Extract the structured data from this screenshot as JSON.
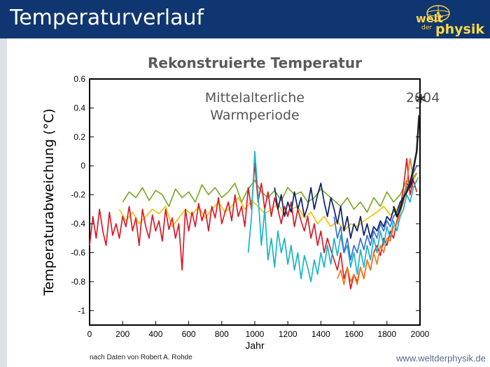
{
  "header": {
    "title": "Temperaturverlauf",
    "logo_top": "welt",
    "logo_mid": "der",
    "logo_bottom": "physik",
    "colors": {
      "bar": "#0f3670",
      "logo_text": "#ffd84a"
    }
  },
  "footer": {
    "source": "nach Daten von Robert A. Rohde",
    "url": "www.weltderphysik.de"
  },
  "chart_data": {
    "type": "line",
    "title": "Rekonstruierte Temperatur",
    "xlabel": "Jahr",
    "ylabel": "Temperaturabweichung (°C)",
    "xlim": [
      0,
      2000
    ],
    "ylim": [
      -1.1,
      0.6
    ],
    "xticks": [
      0,
      200,
      400,
      600,
      800,
      1000,
      1200,
      1400,
      1600,
      1800,
      2000
    ],
    "yticks": [
      0.6,
      0.4,
      0.2,
      0,
      -0.2,
      -0.4,
      -0.6,
      -0.8,
      -1
    ],
    "ytick_labels": [
      "0.6",
      "0.4",
      "0.2",
      "0",
      "-0.2",
      "-0.4",
      "-0.6",
      "-0.8",
      "-1"
    ],
    "annotations": [
      {
        "text": "Mittelalterliche",
        "x": 1000,
        "y": 0.44
      },
      {
        "text": "Warmperiode",
        "x": 1000,
        "y": 0.32
      },
      {
        "text": "2004",
        "x": 1915,
        "y": 0.44
      }
    ],
    "marker": {
      "symbol": "*",
      "x": 2004,
      "y": 0.44
    },
    "series": [
      {
        "color": "#7cab2c",
        "x": [
          200,
          240,
          280,
          320,
          360,
          400,
          440,
          480,
          520,
          560,
          600,
          640,
          680,
          720,
          760,
          800,
          840,
          880,
          920,
          960,
          1000,
          1040,
          1080,
          1120,
          1160,
          1200,
          1240,
          1280,
          1320,
          1360,
          1400,
          1440,
          1480,
          1520,
          1560,
          1600,
          1640,
          1680,
          1720,
          1760,
          1800,
          1840,
          1880,
          1920,
          1960,
          1990
        ],
        "y": [
          -0.25,
          -0.18,
          -0.22,
          -0.15,
          -0.24,
          -0.17,
          -0.2,
          -0.28,
          -0.16,
          -0.22,
          -0.18,
          -0.25,
          -0.13,
          -0.2,
          -0.15,
          -0.22,
          -0.18,
          -0.12,
          -0.25,
          -0.16,
          -0.1,
          -0.18,
          -0.22,
          -0.17,
          -0.24,
          -0.15,
          -0.2,
          -0.18,
          -0.25,
          -0.22,
          -0.16,
          -0.2,
          -0.24,
          -0.28,
          -0.22,
          -0.3,
          -0.25,
          -0.32,
          -0.22,
          -0.28,
          -0.18,
          -0.25,
          -0.2,
          -0.1,
          -0.15,
          -0.08
        ]
      },
      {
        "color": "#f2c200",
        "x": [
          180,
          220,
          260,
          300,
          340,
          380,
          420,
          460,
          500,
          540,
          580,
          620,
          660,
          700,
          740,
          780,
          820,
          860,
          900,
          940,
          980,
          1020,
          1060,
          1100,
          1140,
          1180,
          1220,
          1260,
          1300,
          1340,
          1380,
          1420,
          1460,
          1500,
          1540,
          1580,
          1620,
          1660,
          1700,
          1740,
          1780,
          1820,
          1860,
          1900,
          1940,
          1980
        ],
        "y": [
          -0.3,
          -0.38,
          -0.32,
          -0.4,
          -0.35,
          -0.3,
          -0.33,
          -0.28,
          -0.42,
          -0.36,
          -0.3,
          -0.34,
          -0.28,
          -0.36,
          -0.3,
          -0.25,
          -0.32,
          -0.28,
          -0.22,
          -0.3,
          -0.24,
          -0.28,
          -0.33,
          -0.3,
          -0.26,
          -0.34,
          -0.3,
          -0.28,
          -0.36,
          -0.32,
          -0.4,
          -0.35,
          -0.42,
          -0.38,
          -0.45,
          -0.4,
          -0.42,
          -0.38,
          -0.35,
          -0.32,
          -0.28,
          -0.34,
          -0.3,
          -0.22,
          -0.15,
          -0.05
        ]
      },
      {
        "color": "#d81b2b",
        "x": [
          0,
          20,
          40,
          60,
          80,
          100,
          120,
          140,
          160,
          180,
          200,
          220,
          240,
          260,
          280,
          300,
          320,
          340,
          360,
          380,
          400,
          420,
          440,
          460,
          480,
          500,
          520,
          540,
          560,
          580,
          600,
          620,
          640,
          660,
          680,
          700,
          720,
          740,
          760,
          780,
          800,
          820,
          840,
          860,
          880,
          900,
          920,
          940,
          960,
          980,
          1000,
          1020,
          1040,
          1060,
          1080,
          1100,
          1120,
          1140,
          1160,
          1180,
          1200,
          1220,
          1240,
          1260,
          1280,
          1300,
          1320,
          1340,
          1360,
          1380,
          1400,
          1420,
          1440,
          1460,
          1480,
          1500,
          1520,
          1540,
          1560,
          1580,
          1600,
          1620,
          1640,
          1660,
          1680,
          1700,
          1720,
          1740,
          1760,
          1780,
          1800,
          1820,
          1840,
          1860,
          1880,
          1900,
          1920,
          1940,
          1960,
          1980
        ],
        "y": [
          -0.55,
          -0.35,
          -0.5,
          -0.3,
          -0.45,
          -0.55,
          -0.32,
          -0.48,
          -0.4,
          -0.5,
          -0.35,
          -0.42,
          -0.28,
          -0.45,
          -0.36,
          -0.55,
          -0.3,
          -0.42,
          -0.5,
          -0.34,
          -0.45,
          -0.38,
          -0.52,
          -0.3,
          -0.44,
          -0.36,
          -0.5,
          -0.4,
          -0.72,
          -0.3,
          -0.45,
          -0.32,
          -0.42,
          -0.26,
          -0.38,
          -0.3,
          -0.45,
          -0.28,
          -0.36,
          -0.22,
          -0.4,
          -0.32,
          -0.25,
          -0.38,
          -0.2,
          -0.35,
          -0.28,
          -0.42,
          -0.15,
          -0.3,
          0.02,
          -0.25,
          -0.12,
          -0.3,
          -0.18,
          -0.35,
          -0.22,
          -0.3,
          -0.4,
          -0.28,
          -0.35,
          -0.25,
          -0.42,
          -0.3,
          -0.38,
          -0.45,
          -0.35,
          -0.5,
          -0.4,
          -0.55,
          -0.45,
          -0.6,
          -0.5,
          -0.58,
          -0.65,
          -0.72,
          -0.6,
          -0.78,
          -0.7,
          -0.85,
          -0.75,
          -0.8,
          -0.7,
          -0.78,
          -0.65,
          -0.72,
          -0.6,
          -0.55,
          -0.62,
          -0.5,
          -0.55,
          -0.45,
          -0.5,
          -0.38,
          -0.3,
          -0.15,
          0.05,
          -0.2,
          -0.1,
          -0.18
        ]
      },
      {
        "color": "#1ab3c6",
        "x": [
          960,
          980,
          1000,
          1020,
          1040,
          1060,
          1080,
          1100,
          1120,
          1140,
          1160,
          1180,
          1200,
          1220,
          1240,
          1260,
          1280,
          1300,
          1320,
          1340,
          1360,
          1380,
          1400,
          1420,
          1440,
          1460,
          1480,
          1500,
          1520,
          1540,
          1560,
          1580,
          1600,
          1620,
          1640,
          1660,
          1680,
          1700,
          1720,
          1740,
          1760,
          1780,
          1800,
          1820,
          1840,
          1860,
          1880,
          1900,
          1920,
          1940,
          1960,
          1980
        ],
        "y": [
          -0.6,
          -0.35,
          0.1,
          -0.2,
          -0.55,
          -0.3,
          -0.65,
          -0.5,
          -0.7,
          -0.45,
          -0.6,
          -0.5,
          -0.68,
          -0.55,
          -0.72,
          -0.6,
          -0.78,
          -0.62,
          -0.7,
          -0.8,
          -0.65,
          -0.75,
          -0.6,
          -0.7,
          -0.55,
          -0.68,
          -0.5,
          -0.62,
          -0.48,
          -0.6,
          -0.55,
          -0.7,
          -0.6,
          -0.75,
          -0.58,
          -0.7,
          -0.55,
          -0.65,
          -0.5,
          -0.6,
          -0.45,
          -0.55,
          -0.42,
          -0.5,
          -0.38,
          -0.45,
          -0.35,
          -0.3,
          -0.2,
          -0.25,
          -0.15,
          -0.1
        ]
      },
      {
        "color": "#0a1f6e",
        "x": [
          1120,
          1140,
          1160,
          1180,
          1200,
          1220,
          1240,
          1260,
          1280,
          1300,
          1320,
          1340,
          1360,
          1380,
          1400,
          1420,
          1440,
          1460,
          1480,
          1500,
          1520,
          1540,
          1560,
          1580,
          1600,
          1620,
          1640,
          1660,
          1680,
          1700,
          1720,
          1740,
          1760,
          1780,
          1800,
          1820,
          1840,
          1860,
          1880,
          1900,
          1920,
          1940,
          1960,
          1980
        ],
        "y": [
          -0.15,
          -0.3,
          -0.2,
          -0.35,
          -0.25,
          -0.32,
          -0.18,
          -0.3,
          -0.22,
          -0.35,
          -0.28,
          -0.15,
          -0.3,
          -0.2,
          -0.12,
          -0.25,
          -0.35,
          -0.22,
          -0.3,
          -0.4,
          -0.28,
          -0.45,
          -0.35,
          -0.5,
          -0.4,
          -0.45,
          -0.35,
          -0.48,
          -0.4,
          -0.5,
          -0.42,
          -0.45,
          -0.38,
          -0.42,
          -0.35,
          -0.38,
          -0.3,
          -0.32,
          -0.25,
          -0.22,
          -0.12,
          -0.15,
          -0.08,
          -0.05
        ]
      },
      {
        "color": "#3b6fd4",
        "x": [
          1480,
          1500,
          1520,
          1540,
          1560,
          1580,
          1600,
          1620,
          1640,
          1660,
          1680,
          1700,
          1720,
          1740,
          1760,
          1780,
          1800,
          1820,
          1840,
          1860,
          1880,
          1900,
          1920,
          1940,
          1960,
          1980
        ],
        "y": [
          -0.35,
          -0.5,
          -0.42,
          -0.6,
          -0.5,
          -0.65,
          -0.55,
          -0.6,
          -0.5,
          -0.58,
          -0.48,
          -0.55,
          -0.45,
          -0.5,
          -0.4,
          -0.45,
          -0.38,
          -0.42,
          -0.35,
          -0.32,
          -0.28,
          -0.22,
          -0.15,
          -0.12,
          -0.05,
          0.0
        ]
      },
      {
        "color": "#ef7a20",
        "x": [
          1500,
          1520,
          1540,
          1560,
          1580,
          1600,
          1620,
          1640,
          1660,
          1680,
          1700,
          1720,
          1740,
          1760,
          1780,
          1800,
          1820,
          1840,
          1860,
          1880,
          1900,
          1920,
          1940,
          1960,
          1980
        ],
        "y": [
          -0.78,
          -0.72,
          -0.82,
          -0.7,
          -0.8,
          -0.75,
          -0.82,
          -0.7,
          -0.78,
          -0.65,
          -0.72,
          -0.6,
          -0.68,
          -0.55,
          -0.6,
          -0.5,
          -0.52,
          -0.42,
          -0.4,
          -0.32,
          -0.25,
          -0.12,
          0.05,
          -0.08,
          -0.05
        ]
      },
      {
        "color": "#222222",
        "x": [
          1840,
          1860,
          1880,
          1900,
          1920,
          1940,
          1960,
          1980,
          1995
        ],
        "y": [
          -0.28,
          -0.35,
          -0.3,
          -0.22,
          -0.18,
          -0.12,
          -0.02,
          0.1,
          0.35
        ]
      }
    ]
  }
}
